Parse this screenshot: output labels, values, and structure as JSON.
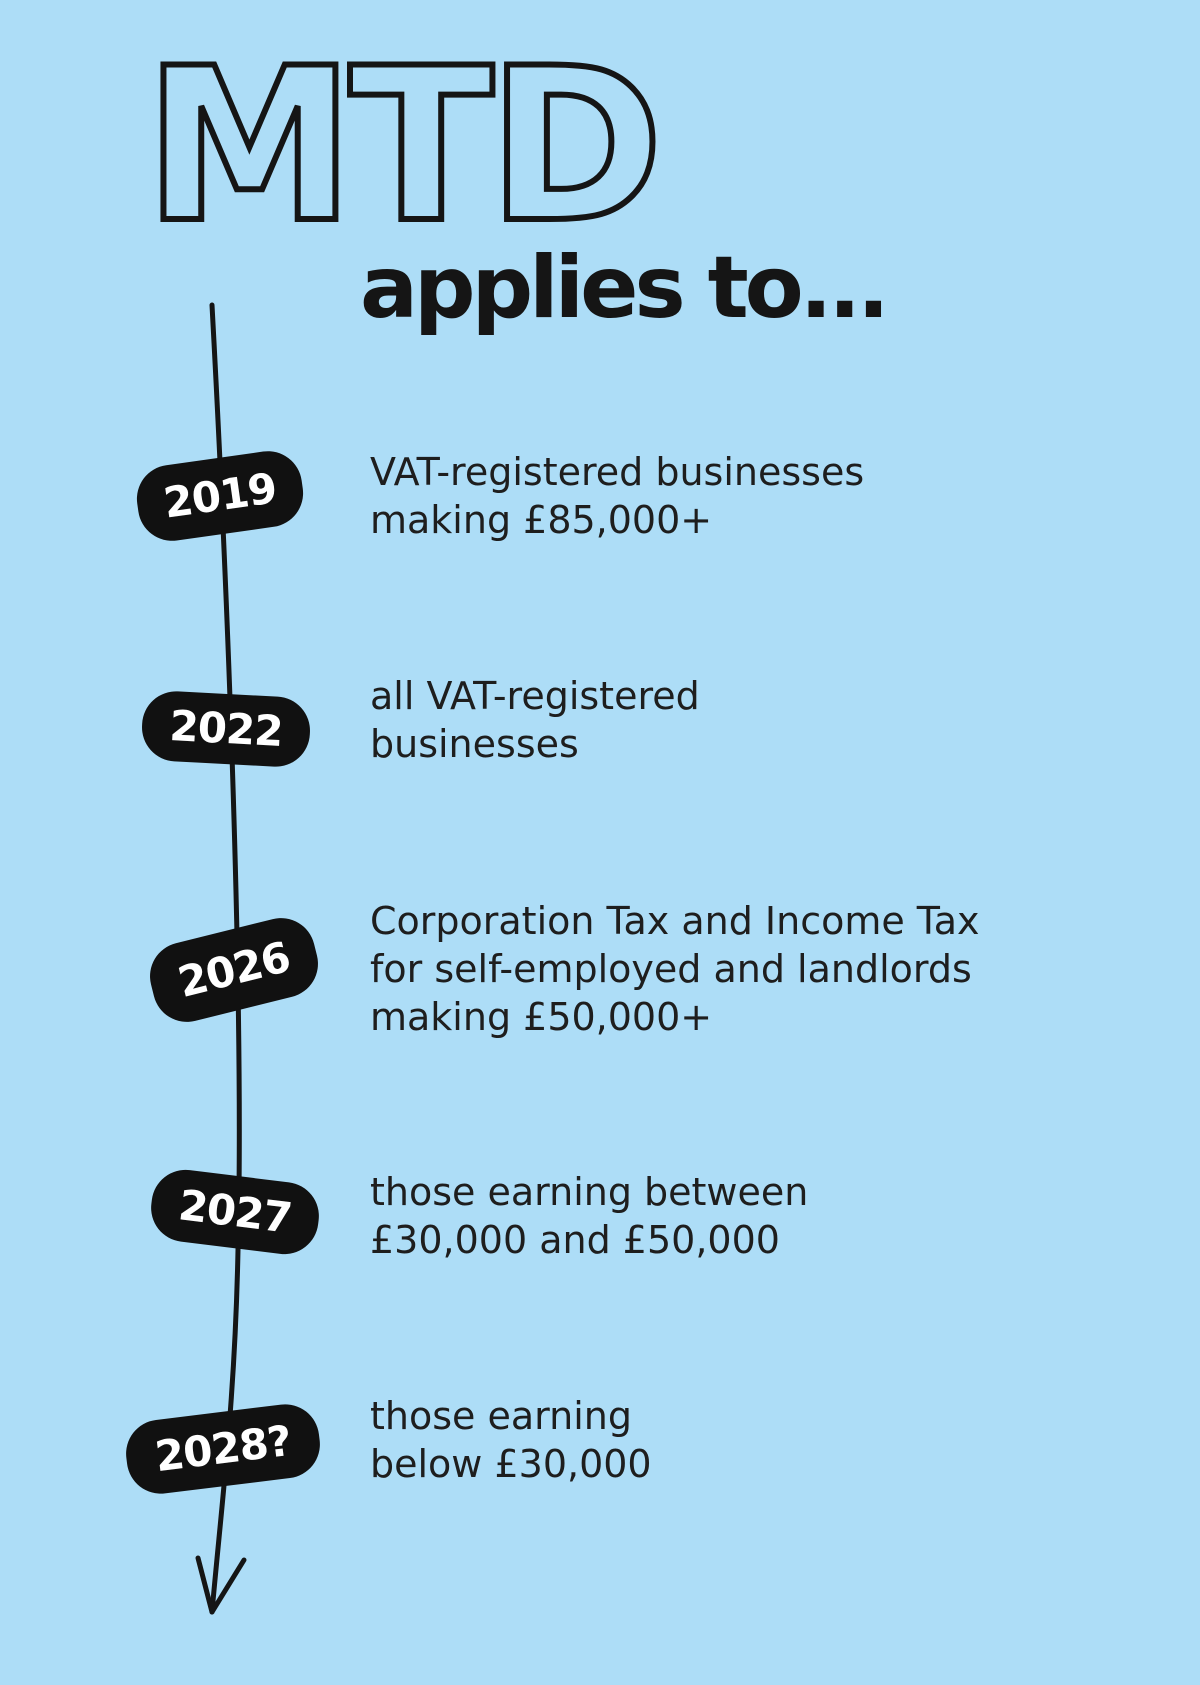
{
  "title": "MTD",
  "subtitle": "applies to...",
  "milestones": [
    {
      "year": "2019",
      "lines": [
        "VAT-registered businesses",
        "making £85,000+"
      ]
    },
    {
      "year": "2022",
      "lines": [
        "all VAT-registered",
        "businesses"
      ]
    },
    {
      "year": "2026",
      "lines": [
        "Corporation Tax and Income Tax",
        "for self-employed and landlords",
        "making £50,000+"
      ]
    },
    {
      "year": "2027",
      "lines": [
        "those earning between",
        "£30,000 and £50,000"
      ]
    },
    {
      "year": "2028?",
      "lines": [
        "those earning",
        "below £30,000"
      ]
    }
  ],
  "colors": {
    "background": "#ADDDF7",
    "ink": "#151515",
    "pill_text": "#FFFFFF"
  }
}
